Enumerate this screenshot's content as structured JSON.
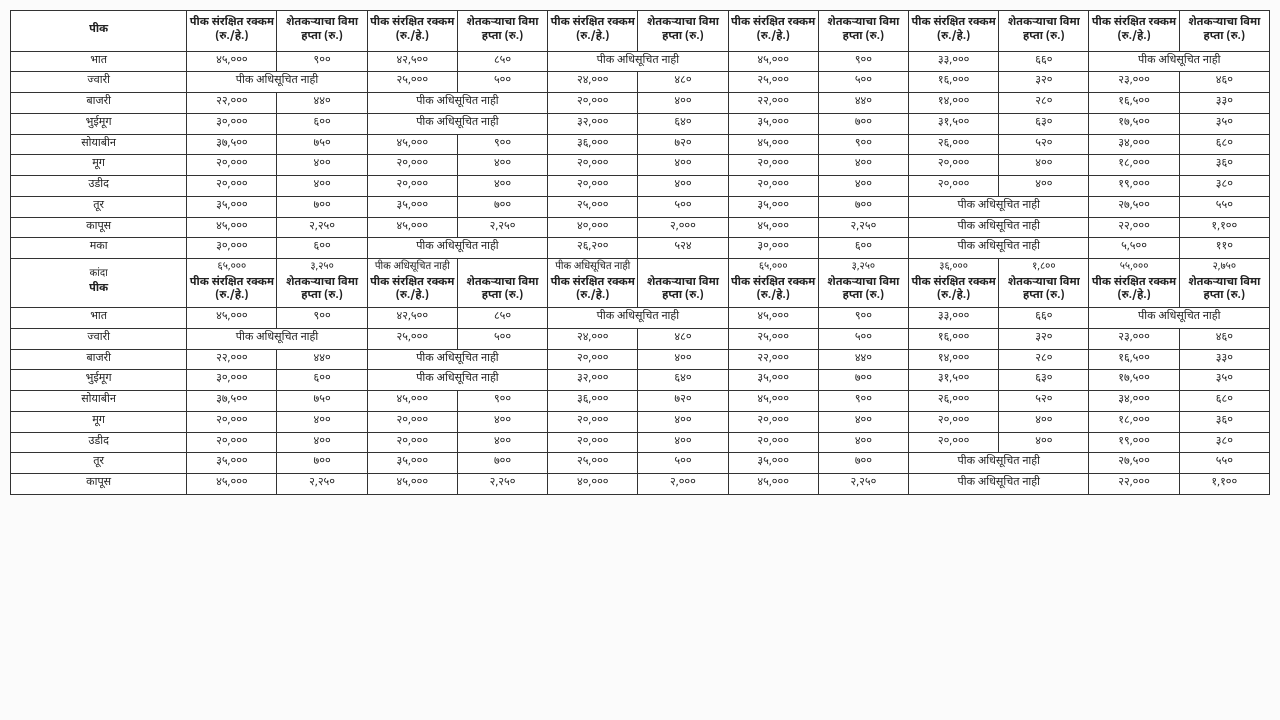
{
  "border_color": "#333333",
  "background": "#ffffff",
  "font_size_header_pt": 11,
  "font_size_cell_pt": 11,
  "headers": {
    "crop": "पीक",
    "col_a": "पीक संरक्षित रक्कम (रु./हे.)",
    "col_b": "शेतकऱ्याचा विमा हप्ता (रु.)"
  },
  "not_notified": "पीक अधिसूचित नाही",
  "rows1": [
    {
      "crop": "भात",
      "c": [
        [
          "४५,०००",
          "९००"
        ],
        [
          "४२,५००",
          "८५०"
        ],
        "NN",
        [
          "४५,०००",
          "९००"
        ],
        [
          "३३,०००",
          "६६०"
        ],
        "NN"
      ]
    },
    {
      "crop": "ज्वारी",
      "c": [
        "NN",
        [
          "२५,०००",
          "५००"
        ],
        [
          "२४,०००",
          "४८०"
        ],
        [
          "२५,०००",
          "५००"
        ],
        [
          "१६,०००",
          "३२०"
        ],
        [
          "२३,०००",
          "४६०"
        ]
      ]
    },
    {
      "crop": "बाजरी",
      "c": [
        [
          "२२,०००",
          "४४०"
        ],
        "NN",
        [
          "२०,०००",
          "४००"
        ],
        [
          "२२,०००",
          "४४०"
        ],
        [
          "१४,०००",
          "२८०"
        ],
        [
          "१६,५००",
          "३३०"
        ]
      ]
    },
    {
      "crop": "भुईमूग",
      "c": [
        [
          "३०,०००",
          "६००"
        ],
        "NN",
        [
          "३२,०००",
          "६४०"
        ],
        [
          "३५,०००",
          "७००"
        ],
        [
          "३१,५००",
          "६३०"
        ],
        [
          "१७,५००",
          "३५०"
        ]
      ]
    },
    {
      "crop": "सोयाबीन",
      "c": [
        [
          "३७,५००",
          "७५०"
        ],
        [
          "४५,०००",
          "९००"
        ],
        [
          "३६,०००",
          "७२०"
        ],
        [
          "४५,०००",
          "९००"
        ],
        [
          "२६,०००",
          "५२०"
        ],
        [
          "३४,०००",
          "६८०"
        ]
      ]
    },
    {
      "crop": "मूग",
      "c": [
        [
          "२०,०००",
          "४००"
        ],
        [
          "२०,०००",
          "४००"
        ],
        [
          "२०,०००",
          "४००"
        ],
        [
          "२०,०००",
          "४००"
        ],
        [
          "२०,०००",
          "४००"
        ],
        [
          "१८,०००",
          "३६०"
        ]
      ]
    },
    {
      "crop": "उडीद",
      "c": [
        [
          "२०,०००",
          "४००"
        ],
        [
          "२०,०००",
          "४००"
        ],
        [
          "२०,०००",
          "४००"
        ],
        [
          "२०,०००",
          "४००"
        ],
        [
          "२०,०००",
          "४००"
        ],
        [
          "१९,०००",
          "३८०"
        ]
      ]
    },
    {
      "crop": "तूर",
      "c": [
        [
          "३५,०००",
          "७००"
        ],
        [
          "३५,०००",
          "७००"
        ],
        [
          "२५,०००",
          "५००"
        ],
        [
          "३५,०००",
          "७००"
        ],
        "NN",
        [
          "२७,५००",
          "५५०"
        ]
      ]
    },
    {
      "crop": "कापूस",
      "c": [
        [
          "४५,०००",
          "२,२५०"
        ],
        [
          "४५,०००",
          "२,२५०"
        ],
        [
          "४०,०००",
          "२,०००"
        ],
        [
          "४५,०००",
          "२,२५०"
        ],
        "NN",
        [
          "२२,०००",
          "१,१००"
        ]
      ]
    },
    {
      "crop": "मका",
      "c": [
        [
          "३०,०००",
          "६००"
        ],
        "NN",
        [
          "२६,२००",
          "५२४"
        ],
        [
          "३०,०००",
          "६००"
        ],
        "NN",
        [
          "५,५००",
          "११०"
        ]
      ]
    }
  ],
  "midrow": {
    "crop_top": "कांदा",
    "c_top": [
      [
        "६५,०००",
        "३,२५०"
      ],
      "NN",
      "NN",
      [
        "६५,०००",
        "३,२५०"
      ],
      [
        "३६,०००",
        "१,८००"
      ],
      [
        "५५,०००",
        "२,७५०"
      ]
    ]
  },
  "rows2": [
    {
      "crop": "भात",
      "c": [
        [
          "४५,०००",
          "९००"
        ],
        [
          "४२,५००",
          "८५०"
        ],
        "NN",
        [
          "४५,०००",
          "९००"
        ],
        [
          "३३,०००",
          "६६०"
        ],
        "NN"
      ]
    },
    {
      "crop": "ज्वारी",
      "c": [
        "NN",
        [
          "२५,०००",
          "५००"
        ],
        [
          "२४,०००",
          "४८०"
        ],
        [
          "२५,०००",
          "५००"
        ],
        [
          "१६,०००",
          "३२०"
        ],
        [
          "२३,०००",
          "४६०"
        ]
      ]
    },
    {
      "crop": "बाजरी",
      "c": [
        [
          "२२,०००",
          "४४०"
        ],
        "NN",
        [
          "२०,०००",
          "४००"
        ],
        [
          "२२,०००",
          "४४०"
        ],
        [
          "१४,०००",
          "२८०"
        ],
        [
          "१६,५००",
          "३३०"
        ]
      ]
    },
    {
      "crop": "भुईमूग",
      "c": [
        [
          "३०,०००",
          "६००"
        ],
        "NN",
        [
          "३२,०००",
          "६४०"
        ],
        [
          "३५,०००",
          "७००"
        ],
        [
          "३१,५००",
          "६३०"
        ],
        [
          "१७,५००",
          "३५०"
        ]
      ]
    },
    {
      "crop": "सोयाबीन",
      "c": [
        [
          "३७,५००",
          "७५०"
        ],
        [
          "४५,०००",
          "९००"
        ],
        [
          "३६,०००",
          "७२०"
        ],
        [
          "४५,०००",
          "९००"
        ],
        [
          "२६,०००",
          "५२०"
        ],
        [
          "३४,०००",
          "६८०"
        ]
      ]
    },
    {
      "crop": "मूग",
      "c": [
        [
          "२०,०००",
          "४००"
        ],
        [
          "२०,०००",
          "४००"
        ],
        [
          "२०,०००",
          "४००"
        ],
        [
          "२०,०००",
          "४००"
        ],
        [
          "२०,०००",
          "४००"
        ],
        [
          "१८,०००",
          "३६०"
        ]
      ]
    },
    {
      "crop": "उडीद",
      "c": [
        [
          "२०,०००",
          "४००"
        ],
        [
          "२०,०००",
          "४००"
        ],
        [
          "२०,०००",
          "४००"
        ],
        [
          "२०,०००",
          "४००"
        ],
        [
          "२०,०००",
          "४००"
        ],
        [
          "१९,०००",
          "३८०"
        ]
      ]
    },
    {
      "crop": "तूर",
      "c": [
        [
          "३५,०००",
          "७००"
        ],
        [
          "३५,०००",
          "७००"
        ],
        [
          "२५,०००",
          "५००"
        ],
        [
          "३५,०००",
          "७००"
        ],
        "NN",
        [
          "२७,५००",
          "५५०"
        ]
      ]
    },
    {
      "crop": "कापूस",
      "c": [
        [
          "४५,०००",
          "२,२५०"
        ],
        [
          "४५,०००",
          "२,२५०"
        ],
        [
          "४०,०००",
          "२,०००"
        ],
        [
          "४५,०००",
          "२,२५०"
        ],
        "NN",
        [
          "२२,०००",
          "१,१००"
        ]
      ]
    }
  ]
}
